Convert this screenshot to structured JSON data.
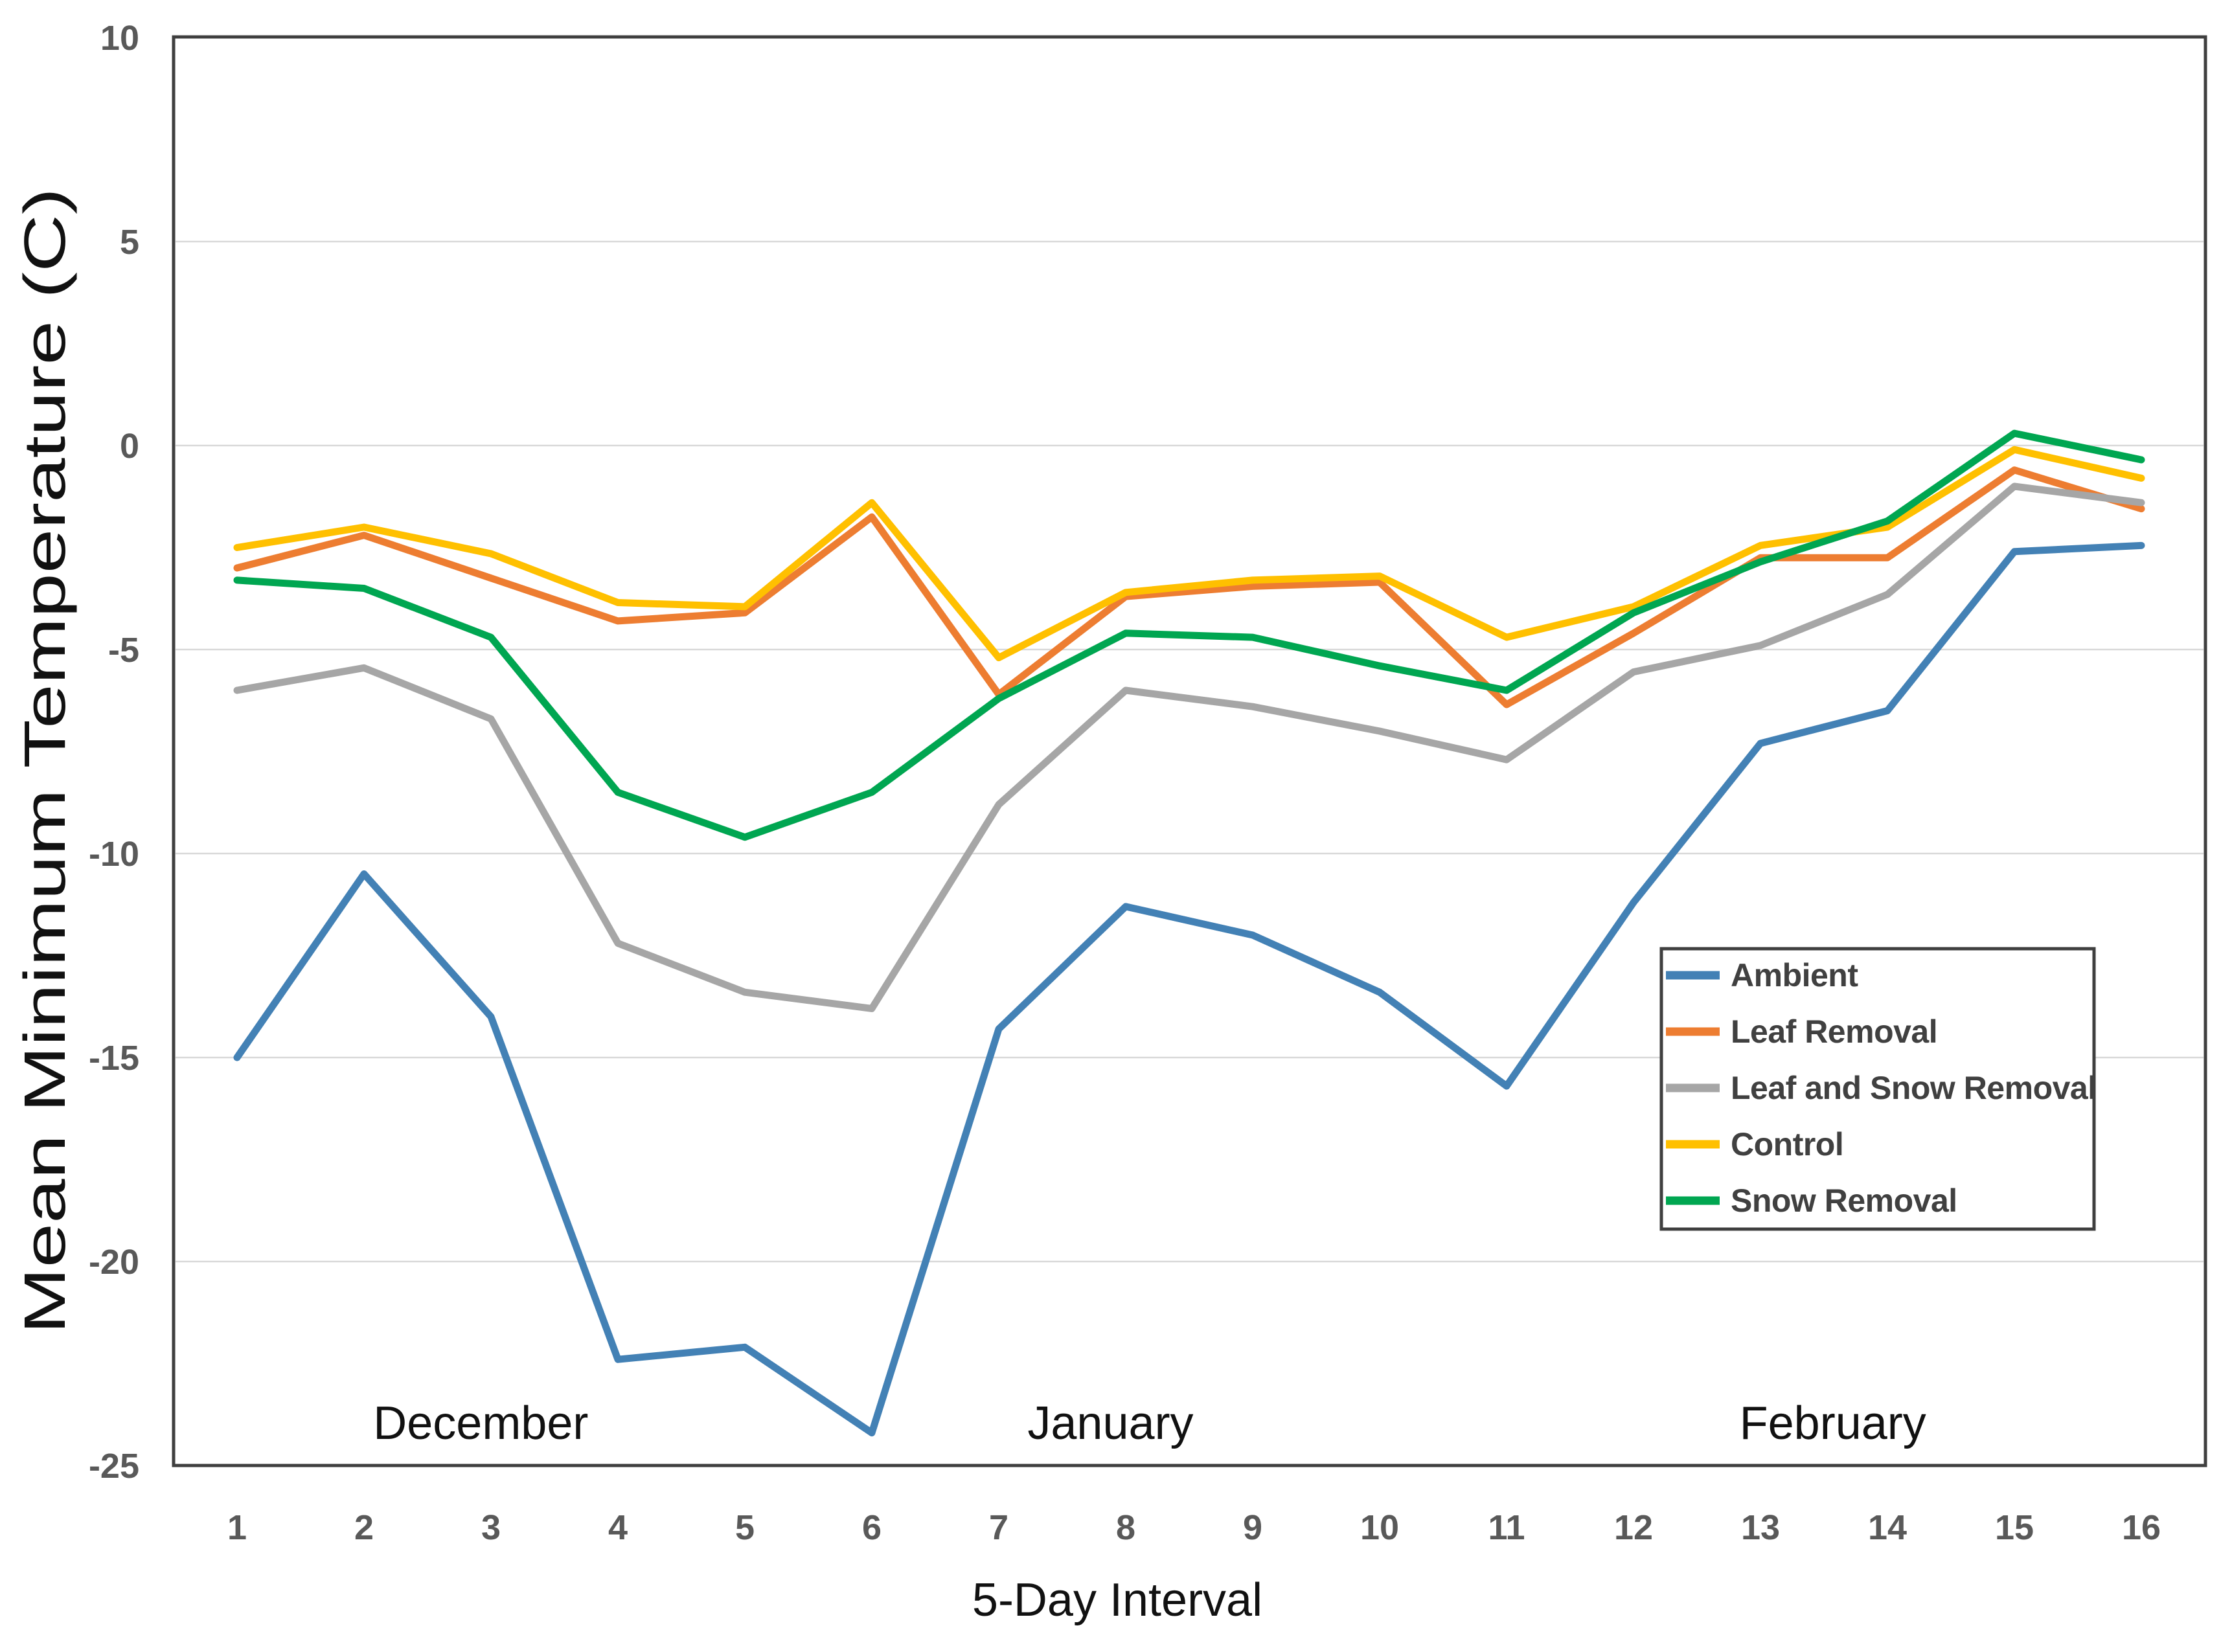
{
  "chart_data": {
    "type": "line",
    "title": "",
    "xlabel": "5-Day Interval",
    "ylabel": "Mean Minimum Temperature (C)",
    "x_categories": [
      "1",
      "2",
      "3",
      "4",
      "5",
      "6",
      "7",
      "8",
      "9",
      "10",
      "11",
      "12",
      "13",
      "14",
      "15",
      "16"
    ],
    "ylim": [
      -25,
      10
    ],
    "yticks": [
      10,
      5,
      0,
      -5,
      -10,
      -15,
      -20,
      -25
    ],
    "gridline_values": [
      5,
      0,
      -5,
      -10,
      -15,
      -20
    ],
    "grid": true,
    "legend_position": "middle-right",
    "month_labels": [
      {
        "label": "December",
        "x_index": 2.92
      },
      {
        "label": "January",
        "x_index": 7.88
      },
      {
        "label": "February",
        "x_index": 13.57
      }
    ],
    "series": [
      {
        "name": "Ambient",
        "color": "#4381B5",
        "values": [
          -15,
          -10.5,
          -14,
          -22.4,
          -22.1,
          -24.2,
          -14.3,
          -11.3,
          -12,
          -13.4,
          -15.7,
          -11.2,
          -7.3,
          -6.5,
          -2.6,
          -2.45
        ]
      },
      {
        "name": "Leaf Removal",
        "color": "#ED7D31",
        "values": [
          -3,
          -2.2,
          -3.25,
          -4.3,
          -4.1,
          -1.75,
          -6.1,
          -3.7,
          -3.45,
          -3.35,
          -6.35,
          -4.6,
          -2.75,
          -2.75,
          -0.6,
          -1.55
        ]
      },
      {
        "name": "Leaf and Snow Removal",
        "color": "#A6A6A6",
        "values": [
          -6,
          -5.45,
          -6.7,
          -12.2,
          -13.4,
          -13.8,
          -8.8,
          -6,
          -6.4,
          -7,
          -7.7,
          -5.55,
          -4.9,
          -3.65,
          -1,
          -1.4
        ]
      },
      {
        "name": "Control",
        "color": "#FFC000",
        "values": [
          -2.5,
          -2,
          -2.65,
          -3.85,
          -3.95,
          -1.4,
          -5.2,
          -3.6,
          -3.3,
          -3.2,
          -4.7,
          -3.95,
          -2.45,
          -2,
          -0.1,
          -0.8
        ]
      },
      {
        "name": "Snow Removal",
        "color": "#00A651",
        "values": [
          -3.3,
          -3.5,
          -4.7,
          -8.5,
          -9.6,
          -8.5,
          -6.2,
          -4.6,
          -4.7,
          -5.4,
          -6,
          -4.1,
          -2.85,
          -1.85,
          0.3,
          -0.35
        ]
      }
    ]
  },
  "colors": {
    "background": "#FFFFFF",
    "gridline": "#D9D9D9",
    "axis_border": "#3F3F3F",
    "tick_label": "#595959",
    "text": "#111111",
    "legend_text": "#404040"
  }
}
